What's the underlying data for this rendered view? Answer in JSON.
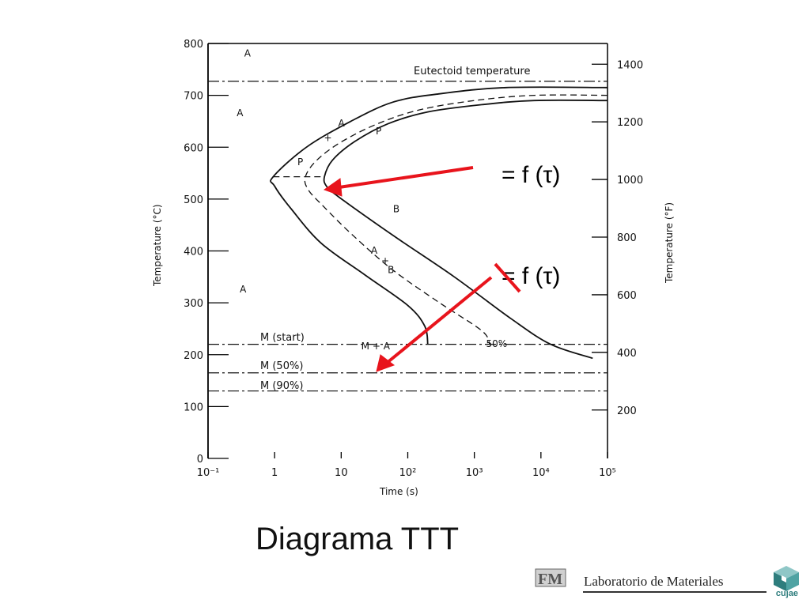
{
  "slide": {
    "title": "Diagrama TTT",
    "footer_lab": "Laboratorio de Materiales",
    "footer_logo_left": "FM",
    "footer_logo_right": "cujae",
    "annotation_1": "= f (τ)",
    "annotation_2": "= f (τ)",
    "arrow_color": "#e8141c"
  },
  "chart_data": {
    "type": "line",
    "xlabel": "Time (s)",
    "ylabel_left": "Temperature (°C)",
    "ylabel_right": "Temperature (°F)",
    "x_scale": "log",
    "xlim": [
      0.1,
      100000
    ],
    "ylim": [
      0,
      800
    ],
    "x_ticks": [
      "10⁻¹",
      "1",
      "10",
      "10²",
      "10³",
      "10⁴",
      "10⁵"
    ],
    "y_ticks_left": [
      "0",
      "100",
      "200",
      "300",
      "400",
      "500",
      "600",
      "700",
      "800"
    ],
    "y_ticks_right": [
      "200",
      "400",
      "600",
      "800",
      "1000",
      "1200",
      "1400"
    ],
    "horizontal_lines": [
      {
        "label": "Eutectoid temperature",
        "y": 727,
        "style": "dash-dot"
      },
      {
        "label": "M (start)",
        "y": 220,
        "style": "dash-dot"
      },
      {
        "label": "M (50%)",
        "y": 165,
        "style": "dash-dot"
      },
      {
        "label": "M (90%)",
        "y": 130,
        "style": "dash-dot"
      }
    ],
    "regions": [
      {
        "label": "A",
        "x": 0.35,
        "y": 775
      },
      {
        "label": "A",
        "x": 0.27,
        "y": 660
      },
      {
        "label": "A",
        "x": 0.3,
        "y": 320
      },
      {
        "label": "P",
        "x": 33,
        "y": 625
      },
      {
        "label": "P",
        "x": 2.2,
        "y": 565
      },
      {
        "label": "B",
        "x": 60,
        "y": 475
      },
      {
        "label": "+",
        "x": 5.5,
        "y": 612
      },
      {
        "label": "A",
        "x": 9,
        "y": 640
      },
      {
        "label": "A",
        "x": 28,
        "y": 395
      },
      {
        "label": "+",
        "x": 40,
        "y": 375
      },
      {
        "label": "B",
        "x": 50,
        "y": 357
      },
      {
        "label": "M + A",
        "x": 20,
        "y": 210
      },
      {
        "label": "50%",
        "x": 1500,
        "y": 215
      }
    ],
    "series": [
      {
        "name": "",
        "style": "solid",
        "points": [
          [
            100000,
            715
          ],
          [
            3000,
            715
          ],
          [
            300,
            703
          ],
          [
            60,
            687
          ],
          [
            14,
            650
          ],
          [
            3,
            600
          ],
          [
            0.95,
            543
          ],
          [
            1,
            525
          ],
          [
            1.8,
            480
          ],
          [
            5,
            415
          ],
          [
            22,
            355
          ],
          [
            100,
            295
          ],
          [
            180,
            255
          ],
          [
            200,
            220
          ]
        ]
      },
      {
        "name": "",
        "style": "dashed",
        "points": [
          [
            100000,
            700
          ],
          [
            8000,
            700
          ],
          [
            1000,
            690
          ],
          [
            150,
            672
          ],
          [
            35,
            645
          ],
          [
            10,
            610
          ],
          [
            4.3,
            575
          ],
          [
            2.9,
            543
          ],
          [
            3.2,
            518
          ],
          [
            5.5,
            485
          ],
          [
            15,
            430
          ],
          [
            60,
            363
          ],
          [
            300,
            300
          ],
          [
            1300,
            246
          ],
          [
            1700,
            220
          ]
        ]
      },
      {
        "name": "",
        "style": "solid",
        "points": [
          [
            100000,
            690
          ],
          [
            8000,
            690
          ],
          [
            1300,
            682
          ],
          [
            200,
            668
          ],
          [
            50,
            645
          ],
          [
            16,
            611
          ],
          [
            7.4,
            575
          ],
          [
            5.6,
            543
          ],
          [
            6,
            525
          ],
          [
            9,
            505
          ],
          [
            60,
            430
          ],
          [
            500,
            350
          ],
          [
            3500,
            270
          ],
          [
            14000,
            220
          ],
          [
            60000,
            193
          ]
        ]
      }
    ]
  }
}
